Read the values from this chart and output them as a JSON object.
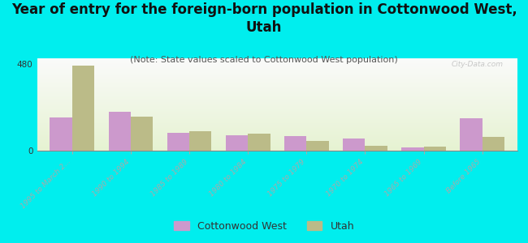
{
  "title": "Year of entry for the foreign-born population in Cottonwood West,\nUtah",
  "subtitle": "(Note: State values scaled to Cottonwood West population)",
  "categories": [
    "1995 to March 2...",
    "1990 to 1994",
    "1985 to 1989",
    "1980 to 1984",
    "1975 to 1979",
    "1970 to 1974",
    "1965 to 1969",
    "Before 1965"
  ],
  "cottonwood_values": [
    185,
    215,
    100,
    85,
    80,
    65,
    18,
    180
  ],
  "utah_values": [
    470,
    190,
    108,
    92,
    52,
    28,
    22,
    75
  ],
  "cottonwood_color": "#cc99cc",
  "utah_color": "#bbbb88",
  "background_color": "#00eeee",
  "ytick_label": "480",
  "ytick_val": 480,
  "ylim_max": 510,
  "bar_width": 0.38,
  "title_fontsize": 12,
  "subtitle_fontsize": 8,
  "tick_fontsize": 6.5,
  "watermark": "City-Data.com",
  "legend_label1": "Cottonwood West",
  "legend_label2": "Utah"
}
